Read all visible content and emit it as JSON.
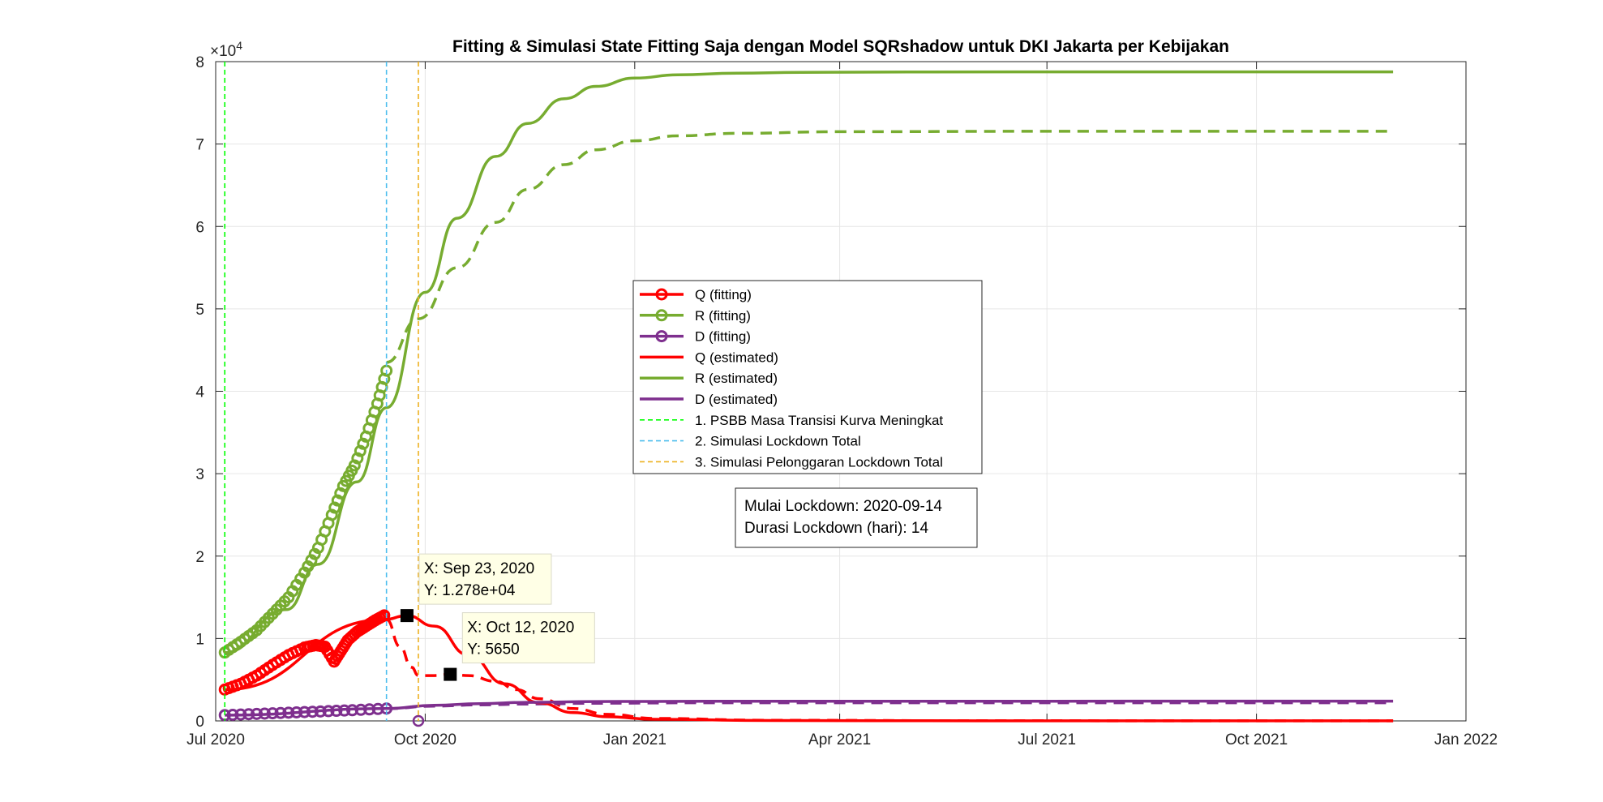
{
  "chart_data": {
    "type": "line",
    "title": "Fitting & Simulasi State Fitting Saja dengan Model SQRshadow untuk DKI Jakarta per Kebijakan",
    "xlabel": "",
    "ylabel": "",
    "x_axis": {
      "type": "date",
      "range": [
        "2020-07-01",
        "2022-01-01"
      ],
      "ticks": [
        {
          "date": "2020-07-01",
          "label": "Jul 2020"
        },
        {
          "date": "2020-10-01",
          "label": "Oct 2020"
        },
        {
          "date": "2021-01-01",
          "label": "Jan 2021"
        },
        {
          "date": "2021-04-01",
          "label": "Apr 2021"
        },
        {
          "date": "2021-07-01",
          "label": "Jul 2021"
        },
        {
          "date": "2021-10-01",
          "label": "Oct 2021"
        },
        {
          "date": "2022-01-01",
          "label": "Jan 2022"
        }
      ]
    },
    "y_axis": {
      "range": [
        0,
        80000
      ],
      "multiplier_label": "×10",
      "multiplier_exponent": "4",
      "ticks": [
        {
          "value": 0,
          "label": "0"
        },
        {
          "value": 10000,
          "label": "1"
        },
        {
          "value": 20000,
          "label": "2"
        },
        {
          "value": 30000,
          "label": "3"
        },
        {
          "value": 40000,
          "label": "4"
        },
        {
          "value": 50000,
          "label": "5"
        },
        {
          "value": 60000,
          "label": "6"
        },
        {
          "value": 70000,
          "label": "7"
        },
        {
          "value": 80000,
          "label": "8"
        }
      ]
    },
    "grid": true,
    "legend_position": "center",
    "series": [
      {
        "name": "Q (fitting)",
        "style": "markers",
        "color": "#ff0000",
        "x": [
          "2020-07-05",
          "2020-07-12",
          "2020-07-19",
          "2020-07-26",
          "2020-08-02",
          "2020-08-09",
          "2020-08-14",
          "2020-08-18",
          "2020-08-22",
          "2020-08-25",
          "2020-08-28",
          "2020-09-01",
          "2020-09-05",
          "2020-09-09",
          "2020-09-13"
        ],
        "y": [
          3800,
          4500,
          5500,
          6800,
          8000,
          8900,
          9200,
          9000,
          7200,
          8500,
          9800,
          10800,
          11500,
          12200,
          12800
        ]
      },
      {
        "name": "R (fitting)",
        "style": "markers",
        "color": "#77ac30",
        "x": [
          "2020-07-05",
          "2020-07-12",
          "2020-07-19",
          "2020-07-26",
          "2020-08-02",
          "2020-08-09",
          "2020-08-15",
          "2020-08-21",
          "2020-08-26",
          "2020-08-31",
          "2020-09-05",
          "2020-09-10",
          "2020-09-14"
        ],
        "y": [
          8300,
          9600,
          11000,
          13000,
          15000,
          18000,
          21000,
          25000,
          28500,
          31000,
          34500,
          38500,
          42500
        ]
      },
      {
        "name": "D (fitting)",
        "style": "markers",
        "color": "#7e2f8e",
        "x": [
          "2020-07-05",
          "2020-07-19",
          "2020-08-02",
          "2020-08-16",
          "2020-08-30",
          "2020-09-14"
        ],
        "y": [
          700,
          850,
          1000,
          1150,
          1300,
          1500
        ]
      },
      {
        "name": "Q (estimated)",
        "style": "solid",
        "color": "#ff0000",
        "x": [
          "2020-07-05",
          "2020-09-13",
          "2020-09-23",
          "2020-10-05",
          "2020-10-20",
          "2020-11-05",
          "2020-11-20",
          "2020-12-05",
          "2020-12-20",
          "2021-01-10",
          "2021-03-01",
          "2021-06-01",
          "2021-11-30"
        ],
        "y": [
          3800,
          12300,
          12780,
          11500,
          8000,
          4500,
          2200,
          1000,
          500,
          200,
          50,
          10,
          5
        ]
      },
      {
        "name": "R (estimated)",
        "style": "solid",
        "color": "#77ac30",
        "x": [
          "2020-07-05",
          "2020-08-01",
          "2020-08-15",
          "2020-09-01",
          "2020-09-14",
          "2020-10-01",
          "2020-10-15",
          "2020-11-01",
          "2020-11-15",
          "2020-12-01",
          "2020-12-15",
          "2021-01-01",
          "2021-01-20",
          "2021-02-15",
          "2021-03-15",
          "2021-05-01",
          "2021-08-01",
          "2021-11-30"
        ],
        "y": [
          8300,
          13500,
          19000,
          29000,
          38000,
          52000,
          61000,
          68500,
          72500,
          75500,
          77000,
          78000,
          78400,
          78600,
          78700,
          78750,
          78760,
          78760
        ]
      },
      {
        "name": "D (estimated)",
        "style": "solid",
        "color": "#7e2f8e",
        "x": [
          "2020-07-05",
          "2020-09-14",
          "2020-10-05",
          "2020-10-25",
          "2020-11-15",
          "2020-12-15",
          "2021-02-01",
          "2021-11-30"
        ],
        "y": [
          700,
          1500,
          1900,
          2100,
          2250,
          2350,
          2380,
          2400
        ]
      },
      {
        "name": "1. PSBB Masa Transisi Kurva Meningkat",
        "style": "vline",
        "color": "#00ff00",
        "x": [
          "2020-07-05"
        ]
      },
      {
        "name": "2. Simulasi Lockdown Total",
        "style": "vline",
        "color": "#4dbeee",
        "x": [
          "2020-09-14"
        ]
      },
      {
        "name": "3. Simulasi Pelonggaran Lockdown Total",
        "style": "vline",
        "color": "#edb120",
        "x": [
          "2020-09-28"
        ]
      },
      {
        "name": "",
        "style": "dashed",
        "color": "#ff0000",
        "x": [
          "2020-09-14",
          "2020-09-20",
          "2020-09-25",
          "2020-09-28",
          "2020-10-05",
          "2020-10-12",
          "2020-10-20",
          "2020-11-01",
          "2020-11-10",
          "2020-11-20",
          "2020-12-05",
          "2020-12-20",
          "2021-01-10",
          "2021-03-01",
          "2021-06-01",
          "2021-11-30"
        ],
        "y": [
          12300,
          9000,
          6500,
          5500,
          5500,
          5650,
          5500,
          4800,
          3800,
          2700,
          1500,
          800,
          300,
          80,
          20,
          10
        ]
      },
      {
        "name": "",
        "style": "dashed",
        "color": "#77ac30",
        "x": [
          "2020-09-14",
          "2020-09-28",
          "2020-10-15",
          "2020-11-01",
          "2020-11-15",
          "2020-12-01",
          "2020-12-15",
          "2021-01-01",
          "2021-01-20",
          "2021-02-15",
          "2021-04-01",
          "2021-07-01",
          "2021-11-30"
        ],
        "y": [
          43500,
          48800,
          55000,
          60500,
          64500,
          67500,
          69300,
          70400,
          71000,
          71300,
          71500,
          71550,
          71550
        ]
      },
      {
        "name": "",
        "style": "dashed",
        "color": "#7e2f8e",
        "x": [
          "2020-09-14",
          "2020-10-05",
          "2020-10-25",
          "2020-11-15",
          "2020-12-15",
          "2021-02-01",
          "2021-11-30"
        ],
        "y": [
          1500,
          1800,
          1950,
          2050,
          2150,
          2200,
          2200
        ]
      }
    ],
    "markers": [
      {
        "x": "2020-09-28",
        "y": 0,
        "color": "#7e2f8e"
      }
    ],
    "datatips": [
      {
        "x": "2020-09-23",
        "y": 12780,
        "line1": "X: Sep 23, 2020",
        "line2": "Y: 1.278e+04"
      },
      {
        "x": "2020-10-12",
        "y": 5650,
        "line1": "X: Oct 12, 2020",
        "line2": "Y: 5650"
      }
    ],
    "annotation": {
      "lines": [
        "Mulai Lockdown: 2020-09-14",
        "Durasi Lockdown (hari): 14"
      ]
    }
  }
}
